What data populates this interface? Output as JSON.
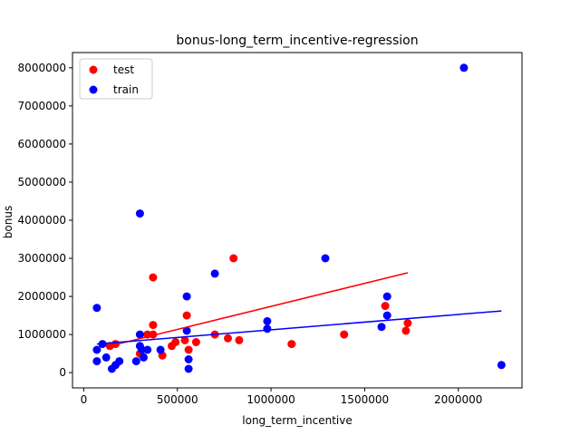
{
  "chart_data": {
    "type": "scatter",
    "title": "bonus-long_term_incentive-regression",
    "xlabel": "long_term_incentive",
    "ylabel": "bonus",
    "xlim": [
      -60000,
      2340000
    ],
    "ylim": [
      -400000,
      8400000
    ],
    "xticks": [
      0,
      500000,
      1000000,
      1500000,
      2000000
    ],
    "xtick_labels": [
      "0",
      "500000",
      "1000000",
      "1500000",
      "2000000"
    ],
    "yticks": [
      0,
      1000000,
      2000000,
      3000000,
      4000000,
      5000000,
      6000000,
      7000000,
      8000000
    ],
    "ytick_labels": [
      "0",
      "1000000",
      "2000000",
      "3000000",
      "4000000",
      "5000000",
      "6000000",
      "7000000",
      "8000000"
    ],
    "grid": false,
    "legend": "top-left",
    "series": [
      {
        "name": "test",
        "color": "#ff0000",
        "points": [
          [
            140000,
            700000
          ],
          [
            170000,
            750000
          ],
          [
            300000,
            500000
          ],
          [
            340000,
            1000000
          ],
          [
            370000,
            2500000
          ],
          [
            370000,
            1000000
          ],
          [
            370000,
            1250000
          ],
          [
            420000,
            450000
          ],
          [
            470000,
            700000
          ],
          [
            490000,
            800000
          ],
          [
            540000,
            850000
          ],
          [
            550000,
            1500000
          ],
          [
            560000,
            600000
          ],
          [
            600000,
            800000
          ],
          [
            700000,
            1000000
          ],
          [
            770000,
            900000
          ],
          [
            800000,
            3000000
          ],
          [
            830000,
            850000
          ],
          [
            1110000,
            750000
          ],
          [
            1390000,
            1000000
          ],
          [
            1610000,
            1750000
          ],
          [
            1720000,
            1100000
          ],
          [
            1730000,
            1300000
          ]
        ]
      },
      {
        "name": "train",
        "color": "#0000ff",
        "points": [
          [
            70000,
            1700000
          ],
          [
            70000,
            600000
          ],
          [
            70000,
            300000
          ],
          [
            100000,
            750000
          ],
          [
            120000,
            400000
          ],
          [
            150000,
            100000
          ],
          [
            170000,
            200000
          ],
          [
            190000,
            300000
          ],
          [
            280000,
            300000
          ],
          [
            300000,
            4175000
          ],
          [
            300000,
            1000000
          ],
          [
            300000,
            700000
          ],
          [
            310000,
            600000
          ],
          [
            320000,
            400000
          ],
          [
            340000,
            600000
          ],
          [
            410000,
            600000
          ],
          [
            550000,
            2000000
          ],
          [
            550000,
            1100000
          ],
          [
            560000,
            350000
          ],
          [
            560000,
            100000
          ],
          [
            700000,
            2600000
          ],
          [
            980000,
            1350000
          ],
          [
            980000,
            1150000
          ],
          [
            1290000,
            3000000
          ],
          [
            1590000,
            1200000
          ],
          [
            1620000,
            2000000
          ],
          [
            1620000,
            1500000
          ],
          [
            2030000,
            8000000
          ],
          [
            2230000,
            200000
          ]
        ]
      }
    ],
    "regression_lines": [
      {
        "series": "test",
        "color": "#ff0000",
        "x": [
          140000,
          1730000
        ],
        "y": [
          700000,
          2620000
        ]
      },
      {
        "series": "train",
        "color": "#0000ff",
        "x": [
          70000,
          2230000
        ],
        "y": [
          750000,
          1620000
        ]
      }
    ]
  }
}
